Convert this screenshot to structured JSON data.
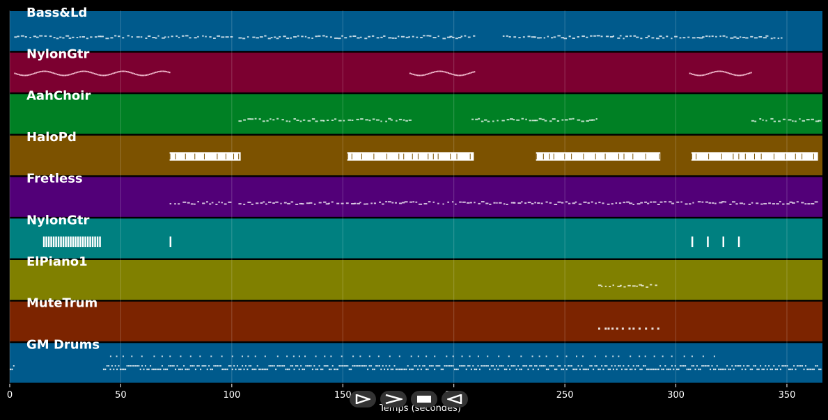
{
  "chart_data": {
    "type": "piano-roll",
    "xlabel": "Temps (secondes)",
    "xlim": [
      0,
      366
    ],
    "xticks": [
      0,
      50,
      100,
      150,
      200,
      250,
      300,
      350
    ],
    "grid": true,
    "tracks": [
      {
        "name": "Bass&Ld",
        "color": "#005a8c",
        "segments": [
          [
            2,
            100
          ],
          [
            103,
            209
          ],
          [
            222,
            348
          ]
        ],
        "style": "fine"
      },
      {
        "name": "NylonGtr",
        "color": "#7c0030",
        "segments": [
          [
            2,
            72
          ],
          [
            180,
            209
          ],
          [
            306,
            334
          ]
        ],
        "style": "wave"
      },
      {
        "name": "AahChoir",
        "color": "#008024",
        "segments": [
          [
            103,
            180
          ],
          [
            208,
            265
          ],
          [
            334,
            365
          ]
        ],
        "style": "fine"
      },
      {
        "name": "HaloPd",
        "color": "#7c5200",
        "segments": [
          [
            72,
            104
          ],
          [
            152,
            209
          ],
          [
            237,
            293
          ],
          [
            307,
            364
          ]
        ],
        "style": "blocks"
      },
      {
        "name": "Fretless",
        "color": "#520078",
        "segments": [
          [
            72,
            100
          ],
          [
            103,
            364
          ]
        ],
        "style": "fine"
      },
      {
        "name": "NylonGtr",
        "color": "#008080",
        "segments": [
          [
            15,
            41
          ],
          [
            72,
            73
          ],
          [
            307,
            308
          ],
          [
            314,
            315
          ],
          [
            321,
            322
          ],
          [
            328,
            329
          ]
        ],
        "style": "bars"
      },
      {
        "name": "ElPiano1",
        "color": "#808000",
        "segments": [
          [
            265,
            292
          ]
        ],
        "style": "fine"
      },
      {
        "name": "MuteTrum",
        "color": "#7c2400",
        "segments": [
          [
            265,
            292
          ]
        ],
        "style": "dots"
      },
      {
        "name": "GM Drums",
        "color": "#005a8c",
        "segments": [
          [
            0,
            2
          ],
          [
            42,
            365
          ]
        ],
        "style": "drums"
      }
    ]
  },
  "transport": {
    "buttons": [
      "play-icon",
      "fast-forward-icon",
      "stop-icon",
      "rewind-icon"
    ],
    "icon_color": "#ffffff"
  }
}
